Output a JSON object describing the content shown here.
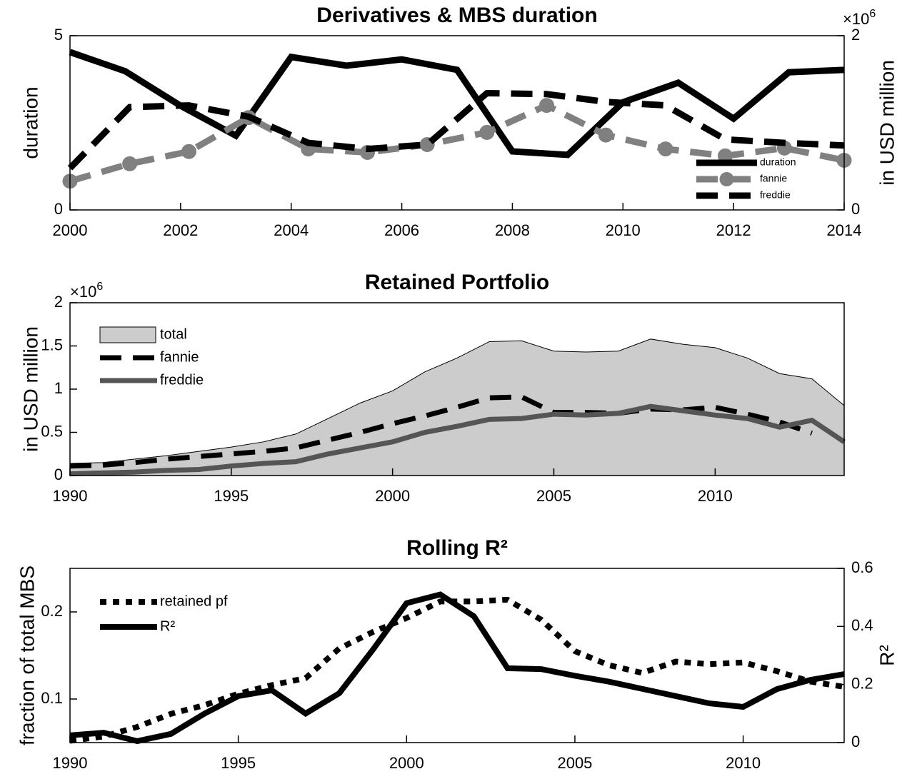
{
  "chart_data": [
    {
      "type": "line",
      "title": "Derivatives & MBS duration",
      "x": [
        2000,
        2001,
        2002,
        2003,
        2004,
        2005,
        2006,
        2007,
        2008,
        2009,
        2010,
        2011,
        2012,
        2013,
        2014
      ],
      "xlim": [
        2000,
        2014
      ],
      "xticks": [
        2000,
        2002,
        2004,
        2006,
        2008,
        2010,
        2012,
        2014
      ],
      "ylim": [
        0,
        5
      ],
      "yticks": [
        0,
        5
      ],
      "ylabel": "duration",
      "y2lim": [
        0,
        2
      ],
      "y2ticks": [
        0,
        2
      ],
      "y2label": "in USD million",
      "y2_multiplier": "×10",
      "y2_multiplier_exp": "6",
      "legend": "lower right",
      "series": [
        {
          "name": "duration",
          "color": "#000000",
          "line_style": "-",
          "values": [
            4.53,
            3.98,
            2.99,
            2.13,
            4.39,
            4.14,
            4.32,
            4.02,
            1.68,
            1.58,
            3.09,
            3.65,
            2.62,
            3.95,
            4.02
          ]
        },
        {
          "name": "fannie",
          "color": "#808080",
          "line_style": "--",
          "marker": "o",
          "axis": "y2",
          "x": [
            2000,
            2001.08,
            2002.15,
            2003.23,
            2004.31,
            2005.38,
            2006.46,
            2007.54,
            2008.62,
            2009.69,
            2010.77,
            2011.85,
            2012.92,
            2014
          ],
          "values": [
            0.33,
            0.53,
            0.67,
            1.06,
            0.7,
            0.66,
            0.75,
            0.89,
            1.2,
            0.86,
            0.7,
            0.62,
            0.71,
            0.57
          ]
        },
        {
          "name": "freddie",
          "color": "#000000",
          "line_style": "--",
          "axis": "y2",
          "x": [
            2000,
            2001.08,
            2002.15,
            2003.23,
            2004.31,
            2005.38,
            2006.46,
            2007.54,
            2008.62,
            2009.69,
            2010.77,
            2011.85,
            2012.92,
            2014
          ],
          "values": [
            0.48,
            1.18,
            1.2,
            1.07,
            0.77,
            0.7,
            0.75,
            1.34,
            1.33,
            1.24,
            1.2,
            0.81,
            0.77,
            0.74
          ]
        }
      ]
    },
    {
      "type": "line",
      "title": "Retained Portfolio",
      "x": [
        1990,
        1991,
        1992,
        1993,
        1994,
        1995,
        1996,
        1997,
        1998,
        1999,
        2000,
        2001,
        2002,
        2003,
        2004,
        2005,
        2006,
        2007,
        2008,
        2009,
        2010,
        2011,
        2012,
        2013,
        2014
      ],
      "xlim": [
        1990,
        2014
      ],
      "xticks": [
        1990,
        1995,
        2000,
        2005,
        2010
      ],
      "ylim": [
        0,
        2
      ],
      "yticks": [
        0,
        0.5,
        1,
        1.5,
        2
      ],
      "ylabel": "in USD million",
      "y_multiplier": "×10",
      "y_multiplier_exp": "6",
      "legend": "upper left",
      "series": [
        {
          "name": "total",
          "color": "#cccccc",
          "kind": "area",
          "values": [
            0.14,
            0.15,
            0.19,
            0.23,
            0.28,
            0.33,
            0.39,
            0.48,
            0.66,
            0.84,
            0.98,
            1.2,
            1.36,
            1.55,
            1.56,
            1.44,
            1.43,
            1.44,
            1.58,
            1.52,
            1.48,
            1.36,
            1.18,
            1.12,
            0.81
          ]
        },
        {
          "name": "fannie",
          "color": "#000000",
          "line_style": "--",
          "values": [
            0.11,
            0.12,
            0.15,
            0.19,
            0.22,
            0.25,
            0.28,
            0.32,
            0.41,
            0.5,
            0.6,
            0.69,
            0.79,
            0.9,
            0.91,
            0.73,
            0.73,
            0.72,
            0.77,
            0.76,
            0.79,
            0.71,
            0.62,
            0.49,
            null
          ]
        },
        {
          "name": "freddie",
          "color": "#555555",
          "line_style": "-",
          "values": [
            0.02,
            0.03,
            0.04,
            0.06,
            0.07,
            0.11,
            0.14,
            0.16,
            0.25,
            0.32,
            0.39,
            0.5,
            0.57,
            0.65,
            0.66,
            0.71,
            0.7,
            0.72,
            0.8,
            0.75,
            0.7,
            0.66,
            0.56,
            0.64,
            0.39
          ]
        }
      ]
    },
    {
      "type": "line",
      "title": "Rolling R²",
      "x": [
        1990,
        1991,
        1992,
        1993,
        1994,
        1995,
        1996,
        1997,
        1998,
        1999,
        2000,
        2001,
        2002,
        2003,
        2004,
        2005,
        2006,
        2007,
        2008,
        2009,
        2010,
        2011,
        2012,
        2013
      ],
      "xlim": [
        1990,
        2013
      ],
      "xticks": [
        1990,
        1995,
        2000,
        2005,
        2010
      ],
      "ylim": [
        0.05,
        0.25
      ],
      "yticks": [
        0.1,
        0.2
      ],
      "ylabel": "fraction of total MBS",
      "y2lim": [
        0,
        0.6
      ],
      "y2ticks": [
        0,
        0.2,
        0.4,
        0.6
      ],
      "y2label": "R²",
      "legend": "upper left",
      "series": [
        {
          "name": "retained pf",
          "color": "#000000",
          "line_style": ":",
          "values": [
            0.052,
            0.057,
            0.068,
            0.083,
            0.093,
            0.106,
            0.116,
            0.124,
            0.158,
            0.177,
            0.193,
            0.212,
            0.212,
            0.214,
            0.191,
            0.155,
            0.139,
            0.13,
            0.143,
            0.14,
            0.142,
            0.132,
            0.12,
            0.114
          ]
        },
        {
          "name": "R²",
          "color": "#000000",
          "line_style": "-",
          "axis": "y2",
          "values": [
            0.025,
            0.034,
            0.005,
            0.03,
            0.1,
            0.16,
            0.18,
            0.1,
            0.17,
            0.32,
            0.48,
            0.51,
            0.435,
            0.256,
            0.253,
            0.23,
            0.21,
            0.185,
            0.16,
            0.135,
            0.123,
            0.184,
            0.216,
            0.236
          ]
        }
      ]
    }
  ]
}
